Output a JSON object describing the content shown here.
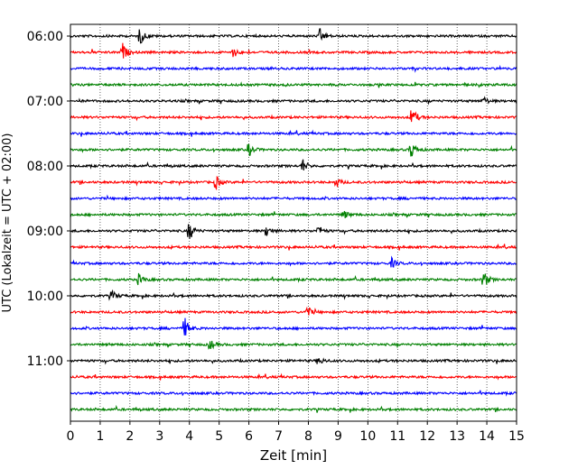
{
  "chart_data": {
    "type": "line",
    "title": "",
    "xlabel": "Zeit  [min]",
    "ylabel": "UTC (Lokalzeit = UTC + 02:00)",
    "xlim": [
      0,
      15
    ],
    "x_ticks": [
      "0",
      "1",
      "2",
      "3",
      "4",
      "5",
      "6",
      "7",
      "8",
      "9",
      "10",
      "11",
      "12",
      "13",
      "14",
      "15"
    ],
    "y_ticks": [
      "06:00",
      "07:00",
      "08:00",
      "09:00",
      "10:00",
      "11:00"
    ],
    "trace_start_time": "06:00",
    "trace_interval_min": 15,
    "trace_count": 24,
    "trace_colors": [
      "#000000",
      "#ff0000",
      "#0000ff",
      "#008000"
    ],
    "grid": "vertical-dotted",
    "events": [
      {
        "trace": 0,
        "x": 2.35,
        "amp": 1.0
      },
      {
        "trace": 0,
        "x": 8.4,
        "amp": 0.9
      },
      {
        "trace": 1,
        "x": 1.75,
        "amp": 1.1
      },
      {
        "trace": 1,
        "x": 5.5,
        "amp": 0.6
      },
      {
        "trace": 4,
        "x": 13.9,
        "amp": 0.5
      },
      {
        "trace": 5,
        "x": 11.5,
        "amp": 1.2
      },
      {
        "trace": 7,
        "x": 6.0,
        "amp": 0.8
      },
      {
        "trace": 7,
        "x": 11.45,
        "amp": 1.1
      },
      {
        "trace": 8,
        "x": 7.8,
        "amp": 0.9
      },
      {
        "trace": 9,
        "x": 4.9,
        "amp": 0.8
      },
      {
        "trace": 9,
        "x": 8.95,
        "amp": 0.6
      },
      {
        "trace": 11,
        "x": 9.2,
        "amp": 0.5
      },
      {
        "trace": 12,
        "x": 4.0,
        "amp": 1.2
      },
      {
        "trace": 12,
        "x": 6.6,
        "amp": 0.7
      },
      {
        "trace": 12,
        "x": 8.35,
        "amp": 0.6
      },
      {
        "trace": 14,
        "x": 10.8,
        "amp": 0.6
      },
      {
        "trace": 15,
        "x": 2.3,
        "amp": 0.7
      },
      {
        "trace": 15,
        "x": 13.9,
        "amp": 1.1
      },
      {
        "trace": 16,
        "x": 1.4,
        "amp": 0.6
      },
      {
        "trace": 17,
        "x": 7.95,
        "amp": 0.8
      },
      {
        "trace": 18,
        "x": 3.85,
        "amp": 1.2
      },
      {
        "trace": 19,
        "x": 4.7,
        "amp": 0.6
      },
      {
        "trace": 20,
        "x": 8.35,
        "amp": 0.5
      }
    ]
  }
}
